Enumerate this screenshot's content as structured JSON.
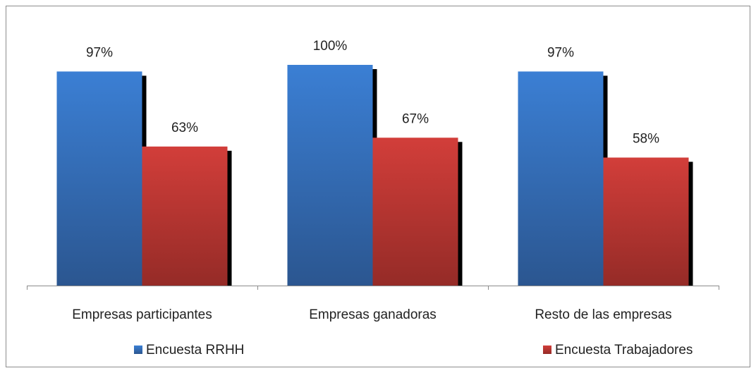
{
  "chart_data": {
    "type": "bar",
    "categories": [
      "Empresas participantes",
      "Empresas ganadoras",
      "Resto de las empresas"
    ],
    "series": [
      {
        "name": "Encuesta RRHH",
        "color": "#3a7acc",
        "values": [
          97,
          100,
          97
        ],
        "value_labels": [
          "97%",
          "100%",
          "97%"
        ]
      },
      {
        "name": "Encuesta Trabajadores",
        "color": "#cc3b37",
        "values": [
          63,
          67,
          58
        ],
        "value_labels": [
          "63%",
          "67%",
          "58%"
        ]
      }
    ],
    "ylim": [
      0,
      100
    ],
    "legend": "bottom"
  }
}
